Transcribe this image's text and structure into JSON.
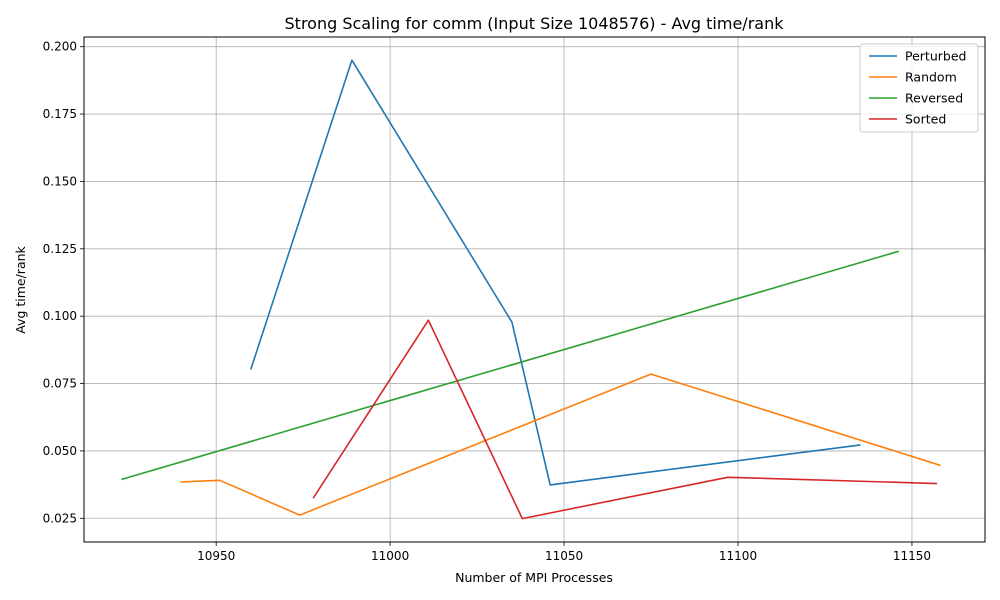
{
  "chart_data": {
    "type": "line",
    "title": "Strong Scaling for comm (Input Size 1048576) - Avg time/rank",
    "xlabel": "Number of MPI Processes",
    "ylabel": "Avg time/rank",
    "xlim": [
      10912,
      11171
    ],
    "ylim": [
      0.0162,
      0.2036
    ],
    "xticks": [
      10950,
      11000,
      11050,
      11100,
      11150
    ],
    "xtick_labels": [
      "10950",
      "11000",
      "11050",
      "11100",
      "11150"
    ],
    "yticks": [
      0.025,
      0.05,
      0.075,
      0.1,
      0.125,
      0.15,
      0.175,
      0.2
    ],
    "ytick_labels": [
      "0.025",
      "0.050",
      "0.075",
      "0.100",
      "0.125",
      "0.150",
      "0.175",
      "0.200"
    ],
    "grid": true,
    "legend_position": "top-right",
    "series": [
      {
        "name": "Perturbed",
        "color": "#1f77b4",
        "x": [
          10960,
          10989,
          11035,
          11046,
          11135
        ],
        "y": [
          0.0805,
          0.195,
          0.0978,
          0.0374,
          0.0522
        ]
      },
      {
        "name": "Random",
        "color": "#ff7f0e",
        "x": [
          10940,
          10951,
          10974,
          11075,
          11158
        ],
        "y": [
          0.0385,
          0.0391,
          0.0262,
          0.0785,
          0.0447
        ]
      },
      {
        "name": "Reversed",
        "color": "#2ca02c",
        "x": [
          10923,
          11146
        ],
        "y": [
          0.0395,
          0.124
        ]
      },
      {
        "name": "Sorted",
        "color": "#d62728",
        "x": [
          10978,
          11011,
          11038,
          11097,
          11157
        ],
        "y": [
          0.0327,
          0.0985,
          0.0249,
          0.0402,
          0.0379
        ]
      }
    ]
  }
}
